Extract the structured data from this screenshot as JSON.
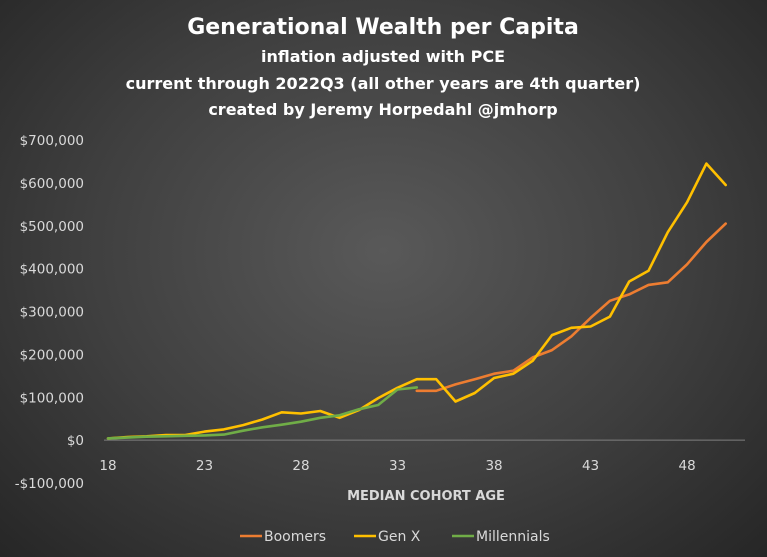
{
  "chart_data": {
    "type": "line",
    "title": "Generational Wealth per Capita",
    "subtitle": [
      "inflation adjusted with PCE",
      "current through 2022Q3 (all other years are 4th quarter)",
      "created by Jeremy Horpedahl @jmhorp"
    ],
    "xlabel": "MEDIAN COHORT AGE",
    "ylabel": "",
    "xlim": [
      18,
      51
    ],
    "ylim": [
      -100000,
      700000
    ],
    "x_ticks": [
      18,
      23,
      28,
      33,
      38,
      43,
      48
    ],
    "x_tick_labels": [
      "18",
      "23",
      "28",
      "33",
      "38",
      "43",
      "48"
    ],
    "y_ticks": [
      -100000,
      0,
      100000,
      200000,
      300000,
      400000,
      500000,
      600000,
      700000
    ],
    "y_tick_labels": [
      "-$100,000",
      "$0",
      "$100,000",
      "$200,000",
      "$300,000",
      "$400,000",
      "$500,000",
      "$600,000",
      "$700,000"
    ],
    "grid": false,
    "legend_position": "bottom",
    "series": [
      {
        "name": "Boomers",
        "color": "#ed7d31",
        "x": [
          34,
          35,
          36,
          37,
          38,
          39,
          40,
          41,
          42,
          43,
          44,
          45,
          46,
          47,
          48,
          49,
          50
        ],
        "y": [
          115000,
          115000,
          130000,
          142000,
          155000,
          162000,
          193000,
          210000,
          242000,
          285000,
          325000,
          340000,
          362000,
          368000,
          410000,
          462000,
          505000
        ]
      },
      {
        "name": "Gen X",
        "color": "#ffc000",
        "x": [
          18,
          19,
          20,
          21,
          22,
          23,
          24,
          25,
          26,
          27,
          28,
          29,
          30,
          31,
          32,
          33,
          34,
          35,
          36,
          37,
          38,
          39,
          40,
          41,
          42,
          43,
          44,
          45,
          46,
          47,
          48,
          49,
          50
        ],
        "y": [
          4000,
          7000,
          9000,
          12000,
          12000,
          20000,
          25000,
          35000,
          48000,
          65000,
          62000,
          68000,
          52000,
          70000,
          98000,
          122000,
          142000,
          142000,
          90000,
          110000,
          145000,
          155000,
          185000,
          245000,
          262000,
          265000,
          288000,
          370000,
          395000,
          485000,
          555000,
          645000,
          595000
        ]
      },
      {
        "name": "Millennials",
        "color": "#70ad47",
        "x": [
          18,
          19,
          20,
          21,
          22,
          23,
          24,
          25,
          26,
          27,
          28,
          29,
          30,
          31,
          32,
          33,
          34
        ],
        "y": [
          4000,
          6000,
          8000,
          9000,
          10000,
          11000,
          13000,
          22000,
          30000,
          36000,
          43000,
          52000,
          58000,
          72000,
          82000,
          118000,
          123000
        ]
      }
    ]
  }
}
